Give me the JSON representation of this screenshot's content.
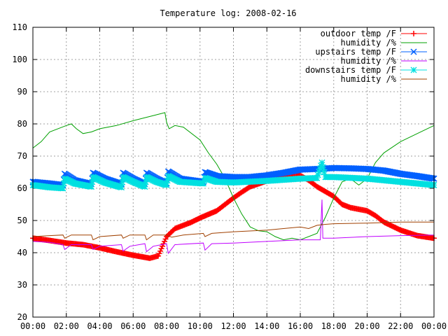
{
  "chart_data": {
    "type": "line",
    "title": "Temperature log: 2008-02-16",
    "xlabel": "",
    "ylabel": "",
    "x_ticks": [
      "00:00",
      "02:00",
      "04:00",
      "06:00",
      "08:00",
      "10:00",
      "12:00",
      "14:00",
      "16:00",
      "18:00",
      "20:00",
      "22:00",
      "00:00"
    ],
    "y_ticks": [
      20,
      30,
      40,
      50,
      60,
      70,
      80,
      90,
      100,
      110
    ],
    "xlim_hours": [
      0,
      24
    ],
    "ylim": [
      20,
      110
    ],
    "grid": true,
    "legend_position": "top-right",
    "series": [
      {
        "name": "outdoor temp /F",
        "color": "#ff0000",
        "marker": "plus",
        "dense": true,
        "points": [
          [
            0,
            44.5
          ],
          [
            1,
            43.8
          ],
          [
            2,
            43
          ],
          [
            3,
            42.5
          ],
          [
            4,
            41.5
          ],
          [
            5,
            40.3
          ],
          [
            6,
            39.2
          ],
          [
            7,
            38.3
          ],
          [
            7.5,
            39
          ],
          [
            8,
            45
          ],
          [
            8.5,
            47.5
          ],
          [
            9,
            48.5
          ],
          [
            9.5,
            49.5
          ],
          [
            10,
            50.8
          ],
          [
            11,
            53
          ],
          [
            12,
            57
          ],
          [
            12.5,
            58.8
          ],
          [
            13,
            60.5
          ],
          [
            14,
            62.3
          ],
          [
            15,
            63.5
          ],
          [
            16,
            64
          ],
          [
            16.5,
            62.5
          ],
          [
            17,
            60.5
          ],
          [
            18,
            57.5
          ],
          [
            18.5,
            55
          ],
          [
            19,
            54
          ],
          [
            19.5,
            53.5
          ],
          [
            20,
            53
          ],
          [
            20.5,
            51.5
          ],
          [
            21,
            49.5
          ],
          [
            22,
            47
          ],
          [
            23,
            45.3
          ],
          [
            24,
            44.5
          ]
        ]
      },
      {
        "name": "humidity /%",
        "color": "#00a000",
        "marker": "none",
        "points": [
          [
            0,
            72.5
          ],
          [
            0.5,
            74.5
          ],
          [
            1,
            77.5
          ],
          [
            2,
            79.5
          ],
          [
            2.3,
            80
          ],
          [
            2.6,
            78.5
          ],
          [
            3,
            77
          ],
          [
            3.5,
            77.5
          ],
          [
            4,
            78.5
          ],
          [
            5,
            79.5
          ],
          [
            6,
            81
          ],
          [
            7,
            82.3
          ],
          [
            7.9,
            83.5
          ],
          [
            8,
            80.5
          ],
          [
            8.15,
            78.5
          ],
          [
            8.5,
            79.5
          ],
          [
            9,
            79
          ],
          [
            10,
            75
          ],
          [
            10.5,
            71
          ],
          [
            11,
            67.5
          ],
          [
            11.5,
            63
          ],
          [
            12,
            57
          ],
          [
            12.5,
            52
          ],
          [
            13,
            48
          ],
          [
            13.5,
            46.8
          ],
          [
            14,
            46.5
          ],
          [
            14.5,
            45
          ],
          [
            15,
            44
          ],
          [
            15.5,
            44.5
          ],
          [
            16,
            44
          ],
          [
            17,
            46
          ],
          [
            17.5,
            51
          ],
          [
            18,
            57
          ],
          [
            18.5,
            62
          ],
          [
            19,
            63
          ],
          [
            19.5,
            61
          ],
          [
            20,
            63
          ],
          [
            20.5,
            68
          ],
          [
            21,
            71
          ],
          [
            22,
            74.5
          ],
          [
            23,
            77
          ],
          [
            24,
            79.5
          ]
        ]
      },
      {
        "name": "upstairs temp /F",
        "color": "#0060ff",
        "marker": "x",
        "dense": true,
        "points": [
          [
            0,
            62
          ],
          [
            1,
            61.5
          ],
          [
            1.8,
            61
          ],
          [
            1.9,
            64.5
          ],
          [
            2.5,
            62.5
          ],
          [
            3.5,
            61.3
          ],
          [
            3.6,
            64.8
          ],
          [
            4.3,
            63
          ],
          [
            5.3,
            61.3
          ],
          [
            5.4,
            64.8
          ],
          [
            6,
            63
          ],
          [
            6.7,
            61.3
          ],
          [
            6.8,
            64.8
          ],
          [
            7.4,
            63
          ],
          [
            8,
            61.5
          ],
          [
            8.1,
            65.2
          ],
          [
            8.8,
            63
          ],
          [
            10.2,
            62
          ],
          [
            10.3,
            65
          ],
          [
            11,
            63.8
          ],
          [
            12,
            63.5
          ],
          [
            13,
            63.5
          ],
          [
            14,
            64
          ],
          [
            15,
            64.8
          ],
          [
            16,
            65.8
          ],
          [
            17,
            66
          ],
          [
            18,
            66.3
          ],
          [
            19,
            66.2
          ],
          [
            20,
            66
          ],
          [
            21,
            65.5
          ],
          [
            22,
            64.5
          ],
          [
            23,
            63.8
          ],
          [
            24,
            63
          ]
        ]
      },
      {
        "name": "humidity /%",
        "color": "#c000ff",
        "marker": "none",
        "points": [
          [
            0,
            43.5
          ],
          [
            1,
            43.2
          ],
          [
            1.8,
            42.5
          ],
          [
            1.9,
            41
          ],
          [
            2.3,
            42.5
          ],
          [
            3.5,
            42.5
          ],
          [
            3.6,
            41
          ],
          [
            4,
            42
          ],
          [
            5.3,
            42.5
          ],
          [
            5.4,
            40.5
          ],
          [
            5.8,
            42
          ],
          [
            6.7,
            42.8
          ],
          [
            6.8,
            40.3
          ],
          [
            7.2,
            42
          ],
          [
            8,
            42.8
          ],
          [
            8.1,
            39.8
          ],
          [
            8.5,
            42.5
          ],
          [
            10.2,
            43
          ],
          [
            10.3,
            40.8
          ],
          [
            10.7,
            42.8
          ],
          [
            12,
            43
          ],
          [
            14,
            43.5
          ],
          [
            16,
            44
          ],
          [
            17.2,
            44
          ],
          [
            17.3,
            56.5
          ],
          [
            17.35,
            44.5
          ],
          [
            18,
            44.5
          ],
          [
            20,
            45
          ],
          [
            22,
            45.3
          ],
          [
            24,
            45.5
          ]
        ]
      },
      {
        "name": "downstairs temp /F",
        "color": "#00e0e0",
        "marker": "star",
        "dense": true,
        "points": [
          [
            0,
            61
          ],
          [
            1,
            60.3
          ],
          [
            1.8,
            60
          ],
          [
            1.9,
            63
          ],
          [
            2.5,
            61.5
          ],
          [
            3.5,
            60.5
          ],
          [
            3.6,
            63.5
          ],
          [
            4.3,
            61.8
          ],
          [
            5.3,
            60.3
          ],
          [
            5.4,
            63.5
          ],
          [
            6,
            62
          ],
          [
            6.7,
            60.5
          ],
          [
            6.8,
            63.5
          ],
          [
            7.4,
            62
          ],
          [
            8,
            61
          ],
          [
            8.1,
            63.8
          ],
          [
            8.8,
            62
          ],
          [
            10.2,
            61.5
          ],
          [
            10.3,
            63.2
          ],
          [
            11,
            62
          ],
          [
            12,
            61.8
          ],
          [
            14,
            62.3
          ],
          [
            16,
            63
          ],
          [
            17,
            63.2
          ],
          [
            17.3,
            68
          ],
          [
            17.5,
            63.5
          ],
          [
            18,
            63.5
          ],
          [
            20,
            63
          ],
          [
            22,
            62
          ],
          [
            24,
            61
          ]
        ]
      },
      {
        "name": "humidity /%",
        "color": "#a04000",
        "marker": "none",
        "points": [
          [
            0,
            45
          ],
          [
            1,
            45.3
          ],
          [
            1.8,
            45.5
          ],
          [
            1.9,
            44.5
          ],
          [
            2.3,
            45.5
          ],
          [
            3.5,
            45.5
          ],
          [
            3.6,
            44
          ],
          [
            4,
            45
          ],
          [
            5.3,
            45.5
          ],
          [
            5.4,
            44.5
          ],
          [
            5.8,
            45.5
          ],
          [
            6.7,
            45.5
          ],
          [
            6.8,
            44
          ],
          [
            7.2,
            45.5
          ],
          [
            8,
            45.5
          ],
          [
            8.3,
            44.8
          ],
          [
            9,
            45.5
          ],
          [
            10.2,
            46
          ],
          [
            10.3,
            45
          ],
          [
            10.7,
            46
          ],
          [
            12,
            46.5
          ],
          [
            14,
            47
          ],
          [
            15,
            47.5
          ],
          [
            16,
            48
          ],
          [
            16.5,
            47.5
          ],
          [
            17,
            48.5
          ],
          [
            17.5,
            48.8
          ],
          [
            18,
            49
          ],
          [
            20,
            49.2
          ],
          [
            22,
            49.5
          ],
          [
            24,
            49.5
          ]
        ]
      }
    ]
  }
}
